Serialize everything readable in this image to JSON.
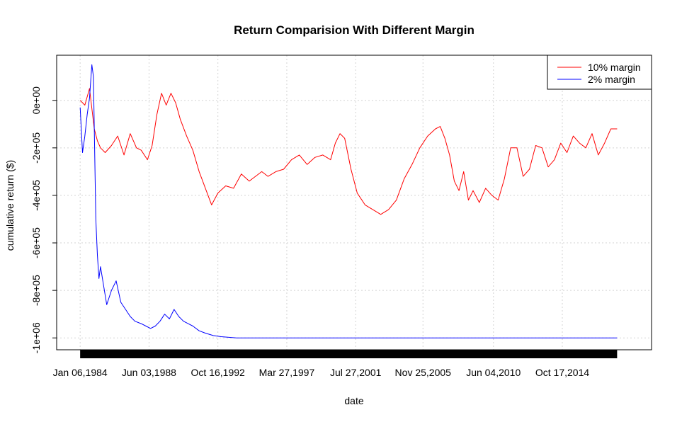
{
  "chart_data": {
    "type": "line",
    "title": "Return Comparision With Different Margin",
    "xlabel": "date",
    "ylabel": "cumulative return ($)",
    "x_ticks": [
      "Jan 06,1984",
      "Jun 03,1988",
      "Oct 16,1992",
      "Mar 27,1997",
      "Jul 27,2001",
      "Nov 25,2005",
      "Jun 04,2010",
      "Oct 17,2014"
    ],
    "y_ticks": [
      "-1e+06",
      "-8e+05",
      "-6e+05",
      "-4e+05",
      "-2e+05",
      "0e+00"
    ],
    "ylim": [
      -1050000,
      190000
    ],
    "xlim": [
      1982.5,
      2020.5
    ],
    "grid": true,
    "legend_position": "top-right",
    "colors": {
      "10% margin": "#ff0000",
      "2% margin": "#0000ff"
    },
    "series": [
      {
        "name": "10% margin",
        "color": "#ff0000",
        "x": [
          1984.0,
          1984.3,
          1984.6,
          1984.9,
          1985.1,
          1985.3,
          1985.6,
          1986.0,
          1986.4,
          1986.8,
          1987.2,
          1987.6,
          1987.9,
          1988.3,
          1988.6,
          1988.9,
          1989.2,
          1989.5,
          1989.8,
          1990.1,
          1990.4,
          1990.8,
          1991.2,
          1991.6,
          1992.0,
          1992.4,
          1992.8,
          1993.3,
          1993.8,
          1994.3,
          1994.8,
          1995.2,
          1995.6,
          1996.0,
          1996.5,
          1997.0,
          1997.5,
          1998.0,
          1998.5,
          1999.0,
          1999.5,
          2000.0,
          2000.3,
          2000.6,
          2000.9,
          2001.3,
          2001.7,
          2002.2,
          2002.7,
          2003.2,
          2003.7,
          2004.2,
          2004.7,
          2005.2,
          2005.7,
          2006.2,
          2006.7,
          2007.0,
          2007.3,
          2007.6,
          2007.9,
          2008.2,
          2008.5,
          2008.8,
          2009.1,
          2009.5,
          2009.9,
          2010.3,
          2010.7,
          2011.1,
          2011.5,
          2011.9,
          2012.3,
          2012.7,
          2013.1,
          2013.5,
          2013.9,
          2014.3,
          2014.7,
          2015.1,
          2015.5,
          2015.9,
          2016.3,
          2016.7,
          2017.1,
          2017.5,
          2017.9,
          2018.3
        ],
        "values": [
          0,
          -20000,
          50000,
          -120000,
          -170000,
          -200000,
          -220000,
          -190000,
          -150000,
          -230000,
          -140000,
          -200000,
          -210000,
          -250000,
          -190000,
          -60000,
          30000,
          -20000,
          30000,
          -10000,
          -80000,
          -150000,
          -210000,
          -300000,
          -370000,
          -440000,
          -390000,
          -360000,
          -370000,
          -310000,
          -340000,
          -320000,
          -300000,
          -320000,
          -300000,
          -290000,
          -250000,
          -230000,
          -270000,
          -240000,
          -230000,
          -250000,
          -180000,
          -140000,
          -160000,
          -290000,
          -390000,
          -440000,
          -460000,
          -480000,
          -460000,
          -420000,
          -330000,
          -270000,
          -200000,
          -150000,
          -120000,
          -110000,
          -160000,
          -230000,
          -340000,
          -380000,
          -300000,
          -420000,
          -380000,
          -430000,
          -370000,
          -400000,
          -420000,
          -330000,
          -200000,
          -200000,
          -320000,
          -290000,
          -190000,
          -200000,
          -280000,
          -250000,
          -180000,
          -220000,
          -150000,
          -180000,
          -200000,
          -140000,
          -230000,
          -180000,
          -120000,
          -120000
        ]
      },
      {
        "name": "2% margin",
        "color": "#0000ff",
        "x": [
          1984.0,
          1984.15,
          1984.3,
          1984.45,
          1984.6,
          1984.75,
          1984.85,
          1985.0,
          1985.1,
          1985.2,
          1985.3,
          1985.5,
          1985.7,
          1986.0,
          1986.3,
          1986.6,
          1986.9,
          1987.2,
          1987.5,
          1987.9,
          1988.2,
          1988.5,
          1988.8,
          1989.1,
          1989.4,
          1989.7,
          1990.0,
          1990.3,
          1990.6,
          1990.9,
          1991.2,
          1991.6,
          1992.0,
          1992.5,
          1993.0,
          1994.0,
          1995.0,
          1996.0,
          1997.0,
          1998.0,
          2000.0,
          2002.0,
          2005.0,
          2010.0,
          2014.0,
          2018.3
        ],
        "values": [
          -30000,
          -220000,
          -150000,
          -60000,
          10000,
          150000,
          100000,
          -500000,
          -650000,
          -750000,
          -700000,
          -780000,
          -860000,
          -800000,
          -760000,
          -850000,
          -880000,
          -910000,
          -930000,
          -940000,
          -950000,
          -960000,
          -950000,
          -930000,
          -900000,
          -920000,
          -880000,
          -910000,
          -930000,
          -940000,
          -950000,
          -970000,
          -980000,
          -990000,
          -995000,
          -1000000,
          -1000000,
          -1000000,
          -1000000,
          -1000000,
          -1000000,
          -1000000,
          -1000000,
          -1000000,
          -1000000,
          -1000000
        ]
      }
    ]
  }
}
